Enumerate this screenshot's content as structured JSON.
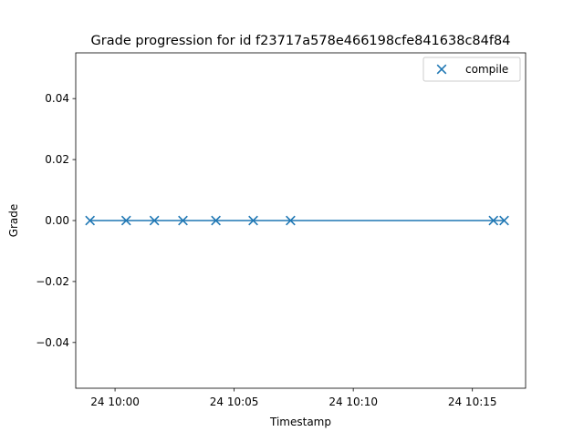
{
  "chart_data": {
    "type": "line",
    "title": "Grade progression for id f23717a578e466198cfe841638c84f84",
    "xlabel": "Timestamp",
    "ylabel": "Grade",
    "x_axis_type": "time",
    "x_range": [
      "09:58:21",
      "10:17:14"
    ],
    "ylim": [
      -0.055,
      0.055
    ],
    "yticks": [
      {
        "value": 0.04,
        "label": "0.04"
      },
      {
        "value": 0.02,
        "label": "0.02"
      },
      {
        "value": 0.0,
        "label": "0.00"
      },
      {
        "value": -0.02,
        "label": "−0.02"
      },
      {
        "value": -0.04,
        "label": "−0.04"
      }
    ],
    "xticks": [
      {
        "value": "10:00:00",
        "label": "24 10:00"
      },
      {
        "value": "10:05:00",
        "label": "24 10:05"
      },
      {
        "value": "10:10:00",
        "label": "24 10:10"
      },
      {
        "value": "10:15:00",
        "label": "24 10:15"
      }
    ],
    "grid": false,
    "legend_position": "top-right",
    "line_color": "#1f77b4",
    "series": [
      {
        "name": "compile",
        "marker": "x",
        "color": "#1f77b4",
        "points": [
          {
            "x": "09:58:57",
            "y": 0
          },
          {
            "x": "10:00:28",
            "y": 0
          },
          {
            "x": "10:01:39",
            "y": 0
          },
          {
            "x": "10:02:51",
            "y": 0
          },
          {
            "x": "10:04:14",
            "y": 0
          },
          {
            "x": "10:05:48",
            "y": 0
          },
          {
            "x": "10:07:22",
            "y": 0
          },
          {
            "x": "10:15:53",
            "y": 0
          },
          {
            "x": "10:16:20",
            "y": 0
          }
        ]
      }
    ]
  }
}
